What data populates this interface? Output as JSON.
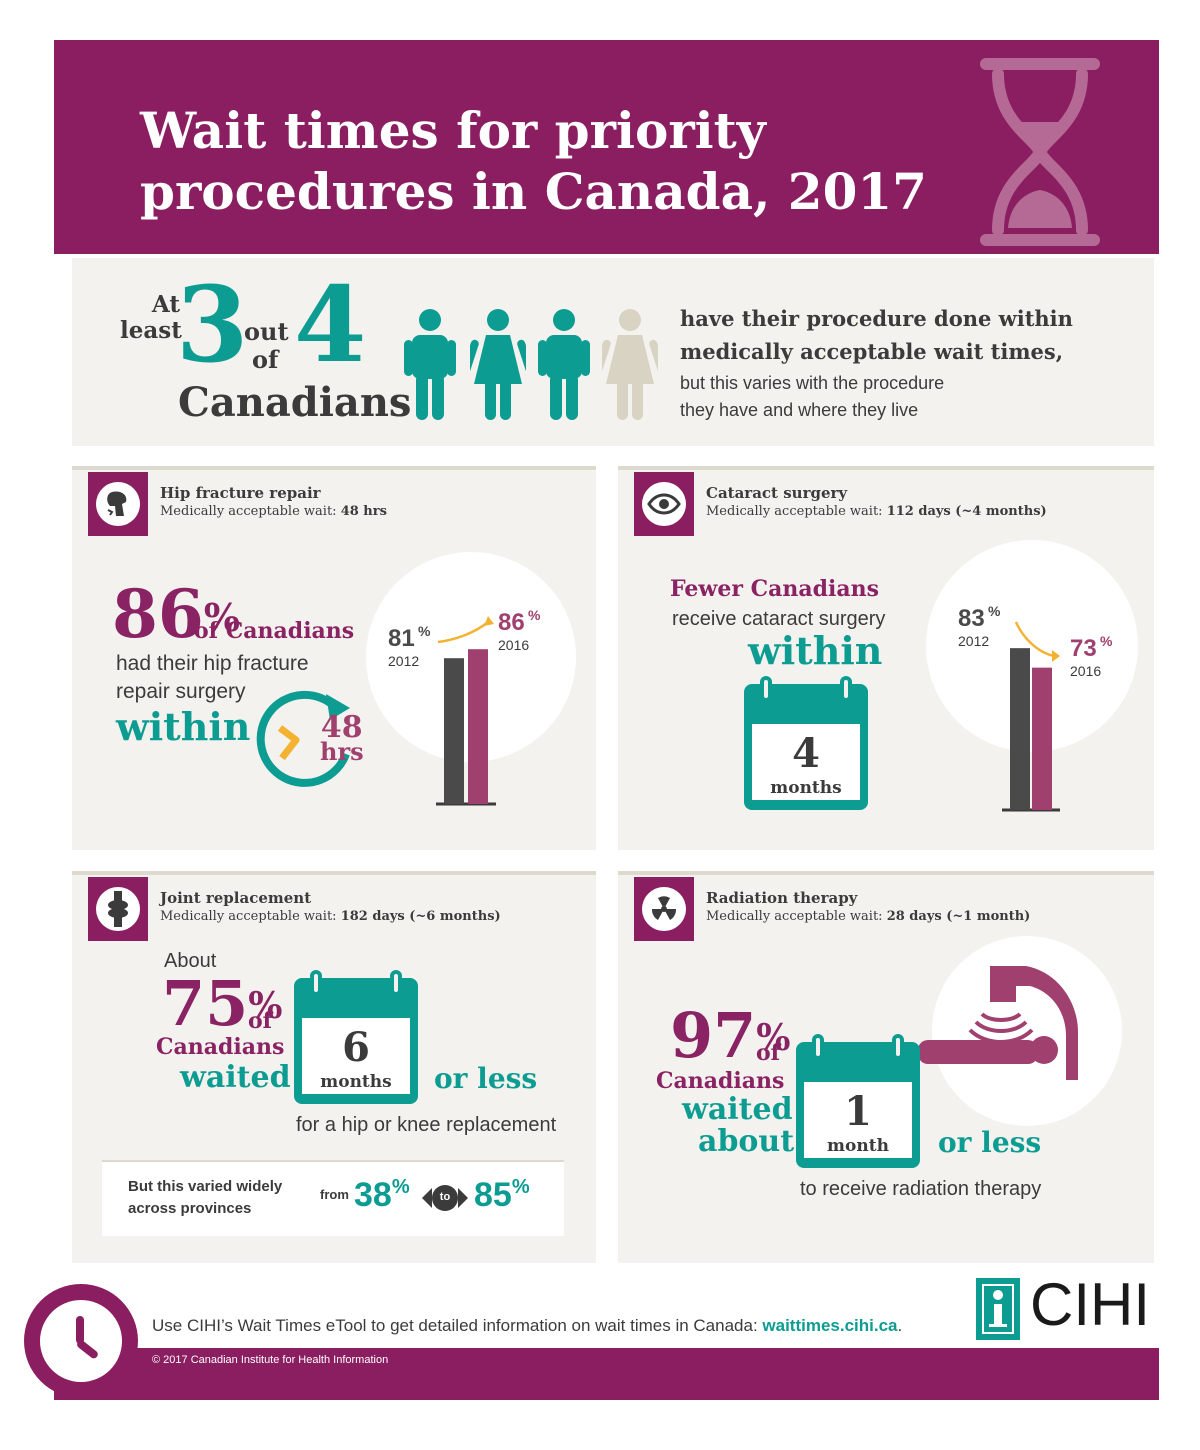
{
  "header": {
    "title_line1": "Wait times for priority",
    "title_line2": "procedures in Canada, 2017",
    "icon": "hourglass-icon"
  },
  "summary": {
    "at_least": "At",
    "least": "least",
    "num_three": "3",
    "out": "out",
    "of": "of",
    "num_four": "4",
    "canadians": "Canadians",
    "headline_line1": "have their procedure done within",
    "headline_line2": "medically acceptable wait times,",
    "detail_line1": "but this varies with the procedure",
    "detail_line2": "they have and where they live",
    "figures": [
      {
        "icon": "man-icon",
        "color": "#0c9c92"
      },
      {
        "icon": "woman-icon",
        "color": "#0c9c92"
      },
      {
        "icon": "man-icon",
        "color": "#0c9c92"
      },
      {
        "icon": "woman-icon",
        "color": "#d8d3c3"
      }
    ]
  },
  "hip": {
    "icon": "hip-bone-icon",
    "title": "Hip fracture repair",
    "sub_prefix": "Medically acceptable wait: ",
    "sub_value": "48 hrs",
    "pct": "86",
    "pct_sign": "%",
    "of_canadians": "of Canadians",
    "line1": "had their hip fracture",
    "line2": "repair surgery",
    "within": "within",
    "clock_num": "48",
    "clock_unit": "hrs",
    "chart": {
      "values": [
        81,
        86
      ],
      "years": [
        "2012",
        "2016"
      ],
      "labels": [
        "81",
        "86"
      ],
      "pct_sign": "%",
      "colors": [
        "#4a4a4a",
        "#a0406f"
      ]
    }
  },
  "cataract": {
    "icon": "eye-icon",
    "title": "Cataract surgery",
    "sub_prefix": "Medically acceptable wait: ",
    "sub_value": "112 days (~4 months)",
    "fewer": "Fewer Canadians",
    "receive": "receive cataract surgery",
    "within": "within",
    "cal_num": "4",
    "cal_unit": "months",
    "chart": {
      "values": [
        83,
        73
      ],
      "years": [
        "2012",
        "2016"
      ],
      "labels": [
        "83",
        "73"
      ],
      "pct_sign": "%",
      "colors": [
        "#4a4a4a",
        "#a0406f"
      ]
    }
  },
  "joint": {
    "icon": "knee-joint-icon",
    "title": "Joint replacement",
    "sub_prefix": "Medically acceptable wait: ",
    "sub_value": "182 days (~6 months)",
    "about": "About",
    "pct": "75",
    "pct_sign": "%",
    "of": "of",
    "canadians": "Canadians",
    "waited": "waited",
    "cal_num": "6",
    "cal_unit": "months",
    "or_less": "or less",
    "for_text": "for a hip or knee replacement",
    "varied_line1": "But this varied widely",
    "varied_line2": "across provinces",
    "from": "from",
    "low": "38",
    "to": "to",
    "high": "85",
    "pct_sign2": "%"
  },
  "radiation": {
    "icon": "radiation-icon",
    "title": "Radiation therapy",
    "sub_prefix": "Medically acceptable wait: ",
    "sub_value": "28 days (~1 month)",
    "pct": "97",
    "pct_sign": "%",
    "of": "of",
    "canadians": "Canadians",
    "waited": "waited",
    "about": "about",
    "cal_num": "1",
    "cal_unit": "month",
    "or_less": "or less",
    "to_receive": "to receive radiation therapy",
    "machine_icon": "radiation-machine-icon"
  },
  "footer": {
    "clock_icon": "clock-icon",
    "text": "Use CIHI’s Wait Times eTool to get detailed information on wait times in Canada: ",
    "link": "waittimes.cihi.ca",
    "period": ".",
    "copyright": "© 2017 Canadian Institute for Health Information",
    "logo_text": "CIHI",
    "logo_icon": "info-i-icon"
  },
  "colors": {
    "purple": "#8a1e60",
    "pink_purple": "#a0406f",
    "teal": "#0c9c92",
    "dark_bar": "#4a4a4a",
    "arrow": "#f3b330",
    "beige": "#f4f2ee"
  }
}
